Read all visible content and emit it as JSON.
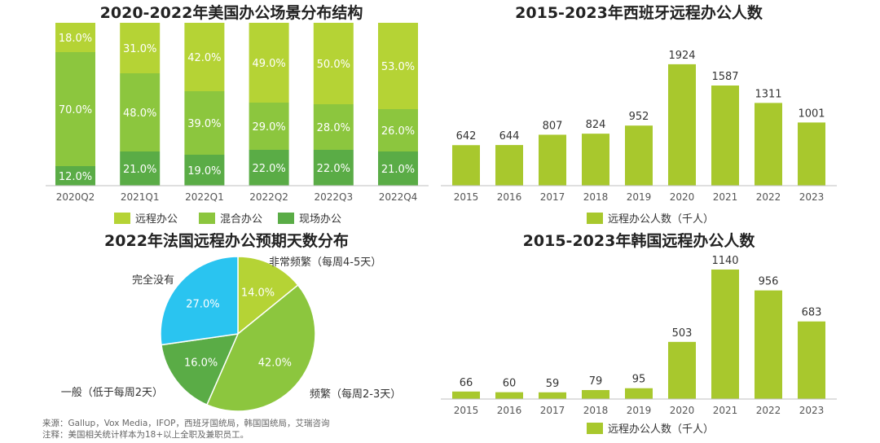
{
  "colors": {
    "remote": "#b5d335",
    "hybrid": "#8cc63e",
    "onsite": "#5aac46",
    "cyan": "#2ac4f0",
    "bar": "#a8c82d"
  },
  "chart_data": [
    {
      "type": "bar",
      "stacked": true,
      "percent": true,
      "title": "2020-2022年美国办公场景分布结构",
      "categories": [
        "2020Q2",
        "2021Q1",
        "2022Q1",
        "2022Q2",
        "2022Q3",
        "2022Q4"
      ],
      "series": [
        {
          "name": "远程办公",
          "values": [
            18.0,
            31.0,
            42.0,
            49.0,
            50.0,
            53.0
          ],
          "labels": [
            "18.0%",
            "31.0%",
            "42.0%",
            "49.0%",
            "50.0%",
            "53.0%"
          ]
        },
        {
          "name": "混合办公",
          "values": [
            70.0,
            48.0,
            39.0,
            29.0,
            28.0,
            26.0
          ],
          "labels": [
            "70.0%",
            "48.0%",
            "39.0%",
            "29.0%",
            "28.0%",
            "26.0%"
          ]
        },
        {
          "name": "现场办公",
          "values": [
            12.0,
            21.0,
            19.0,
            22.0,
            22.0,
            21.0
          ],
          "labels": [
            "12.0%",
            "21.0%",
            "19.0%",
            "22.0%",
            "22.0%",
            "21.0%"
          ]
        }
      ],
      "legend": "bottom"
    },
    {
      "type": "bar",
      "title": "2015-2023年西班牙远程办公人数",
      "categories": [
        "2015",
        "2016",
        "2017",
        "2018",
        "2019",
        "2020",
        "2021",
        "2022",
        "2023"
      ],
      "series": [
        {
          "name": "远程办公人数（千人）",
          "values": [
            642,
            644,
            807,
            824,
            952,
            1924,
            1587,
            1311,
            1001
          ]
        }
      ],
      "legend": "bottom"
    },
    {
      "type": "pie",
      "title": "2022年法国远程办公预期天数分布",
      "slices": [
        {
          "name": "非常频繁（每周4-5天）",
          "value": 14.0,
          "label": "14.0%"
        },
        {
          "name": "频繁（每周2-3天）",
          "value": 42.0,
          "label": "42.0%"
        },
        {
          "name": "一般（低于每周2天）",
          "value": 16.0,
          "label": "16.0%"
        },
        {
          "name": "完全没有",
          "value": 27.0,
          "label": "27.0%"
        }
      ]
    },
    {
      "type": "bar",
      "title": "2015-2023年韩国远程办公人数",
      "categories": [
        "2015",
        "2016",
        "2017",
        "2018",
        "2019",
        "2020",
        "2021",
        "2022",
        "2023"
      ],
      "series": [
        {
          "name": "远程办公人数（千人）",
          "values": [
            66,
            60,
            59,
            79,
            95,
            503,
            1140,
            956,
            683
          ]
        }
      ],
      "legend": "bottom"
    }
  ],
  "footer": {
    "source": "来源：Gallup，Vox Media，IFOP，西班牙国统局，韩国国统局，艾瑞咨询",
    "note": "注释：美国相关统计样本为18+以上全职及兼职员工。"
  }
}
